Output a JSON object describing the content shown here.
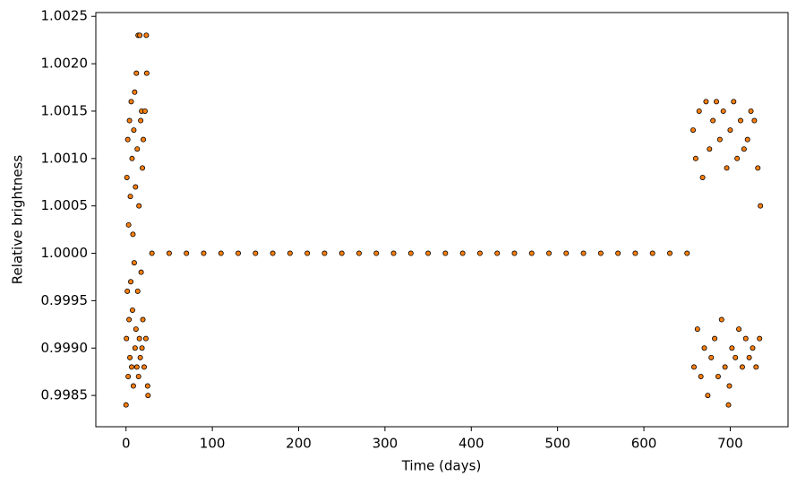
{
  "chart_data": {
    "type": "scatter",
    "xlabel": "Time (days)",
    "ylabel": "Relative brightness",
    "xlim": [
      -35,
      767
    ],
    "ylim": [
      0.99817,
      1.00254
    ],
    "xticks": [
      0,
      100,
      200,
      300,
      400,
      500,
      600,
      700
    ],
    "yticks": [
      0.9985,
      {
        "value": 0.999,
        "label": "0.9990"
      },
      0.9995,
      {
        "value": 1,
        "label": "1.0000"
      },
      1.0005,
      {
        "value": 1.001,
        "label": "1.0010"
      },
      1.0015,
      {
        "value": 1.002,
        "label": "1.0020"
      },
      1.0025
    ],
    "series": [
      {
        "color": "#ff7f0e",
        "x": [
          0,
          0.5,
          1,
          1.5,
          2,
          2.5,
          3,
          3.5,
          4,
          4.5,
          5,
          5.5,
          6,
          6.5,
          7,
          7.5,
          8,
          8.5,
          9,
          9.5,
          10,
          10.5,
          11,
          11.5,
          12,
          12.5,
          13,
          13.5,
          14,
          14.5,
          15,
          15.5,
          16,
          16.5,
          17,
          17.5,
          18,
          18.5,
          19,
          19.5,
          20,
          21,
          22,
          23,
          24,
          25,
          25.5,
          23.5,
          30,
          50,
          70,
          90,
          110,
          130,
          150,
          170,
          190,
          210,
          230,
          250,
          270,
          290,
          310,
          330,
          350,
          370,
          390,
          410,
          430,
          450,
          470,
          490,
          510,
          530,
          550,
          570,
          590,
          610,
          630,
          650,
          657,
          658,
          660,
          662,
          664,
          666,
          668,
          670,
          672,
          674,
          676,
          678,
          680,
          682,
          684,
          686,
          688,
          690,
          692,
          694,
          696,
          698,
          699,
          700,
          702,
          704,
          706,
          708,
          710,
          712,
          714,
          716,
          718,
          720,
          722,
          724,
          726,
          728,
          730,
          732,
          734,
          735
        ],
        "values": [
          0.9984,
          0.9991,
          1.0008,
          0.9996,
          1.0012,
          0.9987,
          1.0003,
          0.9993,
          1.0014,
          0.9989,
          1.0006,
          0.9997,
          1.0016,
          0.9988,
          1.001,
          0.9994,
          1.0002,
          0.9986,
          1.0013,
          0.9999,
          1.0017,
          0.999,
          1.0007,
          0.9992,
          1.0019,
          0.9988,
          1.0011,
          0.9996,
          1.0023,
          0.9987,
          1.0005,
          0.9991,
          1.0023,
          0.9989,
          1.0014,
          0.9998,
          1.0015,
          0.999,
          1.0009,
          0.9993,
          1.0012,
          0.9988,
          1.0015,
          0.9991,
          1.0019,
          0.9986,
          0.9985,
          1.0023,
          1,
          1,
          1,
          1,
          1,
          1,
          1,
          1,
          1,
          1,
          1,
          1,
          1,
          1,
          1,
          1,
          1,
          1,
          1,
          1,
          1,
          1,
          1,
          1,
          1,
          1,
          1,
          1,
          1,
          1,
          1,
          1,
          1.0013,
          0.9988,
          1.001,
          0.9992,
          1.0015,
          0.9987,
          1.0008,
          0.999,
          1.0016,
          0.9985,
          1.0011,
          0.9989,
          1.0014,
          0.9991,
          1.0016,
          0.9987,
          1.0012,
          0.9993,
          1.0015,
          0.9988,
          1.0009,
          0.9984,
          0.9986,
          1.0013,
          0.999,
          1.0016,
          0.9989,
          1.001,
          0.9992,
          1.0014,
          0.9988,
          1.0011,
          0.9991,
          1.0012,
          0.9989,
          1.0015,
          0.999,
          1.0014,
          0.9988,
          1.0009,
          0.9991,
          1.0005
        ]
      }
    ]
  }
}
